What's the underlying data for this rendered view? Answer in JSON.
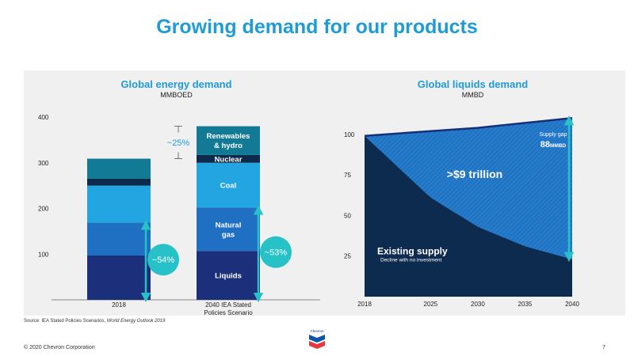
{
  "page": {
    "title": "Growing demand for our products",
    "source_prefix": "Source: IEA Stated Policies Scenarios,",
    "source_italic": "World Energy Outlook 2019",
    "copyright": "© 2020 Chevron Corporation",
    "page_number": "7",
    "logo_text": "Chevron"
  },
  "chart_data": [
    {
      "type": "bar",
      "title": "Global energy demand",
      "subtitle": "MMBOED",
      "ylim": [
        0,
        400
      ],
      "yticks": [
        100,
        200,
        300,
        400
      ],
      "categories": [
        "2018",
        "2040 IEA Stated Policies Scenario"
      ],
      "category_labels": [
        [
          "2018"
        ],
        [
          "2040 IEA Stated",
          "Policies Scenario"
        ]
      ],
      "series": [
        {
          "name": "Liquids",
          "label_lines": [
            "Liquids"
          ],
          "color": "#1b2f7a",
          "values": [
            97,
            107
          ]
        },
        {
          "name": "Natural gas",
          "label_lines": [
            "Natural",
            "gas"
          ],
          "color": "#1f6fc2",
          "values": [
            72,
            95
          ]
        },
        {
          "name": "Coal",
          "label_lines": [
            "Coal"
          ],
          "color": "#22a5e0",
          "values": [
            81,
            98
          ]
        },
        {
          "name": "Nuclear",
          "label_lines": [
            "Nuclear"
          ],
          "color": "#0e2a4a",
          "values": [
            15,
            17
          ]
        },
        {
          "name": "Renewables & hydro",
          "label_lines": [
            "Renewables",
            "& hydro"
          ],
          "color": "#137a96",
          "values": [
            44,
            63
          ]
        }
      ],
      "annotations": {
        "growth": "~25%",
        "share_2018": "~54%",
        "share_2040": "~53%"
      },
      "annotation_color": "#27c2c8"
    },
    {
      "type": "area",
      "title": "Global liquids demand",
      "subtitle": "MMBD",
      "x": [
        2018,
        2025,
        2030,
        2035,
        2040
      ],
      "xticks": [
        2018,
        2025,
        2030,
        2035,
        2040
      ],
      "yticks": [
        25,
        50,
        75,
        100
      ],
      "ylim": [
        0,
        115
      ],
      "series": [
        {
          "name": "Demand",
          "values": [
            99,
            102,
            104,
            107,
            110
          ]
        },
        {
          "name": "Existing supply",
          "values": [
            99,
            61,
            43,
            31,
            23
          ]
        }
      ],
      "labels": {
        "gap_value": ">$9 trillion",
        "existing_supply": "Existing supply",
        "existing_supply_note": "Decline with no investment",
        "supply_gap": "Supply gap",
        "supply_gap_value": "88",
        "supply_gap_unit": "MMBD"
      },
      "colors": {
        "supply": "#0d2a4f",
        "gap": "#1f74c4",
        "demand_line": "#14307a",
        "arrow": "#27c2c8"
      }
    }
  ]
}
